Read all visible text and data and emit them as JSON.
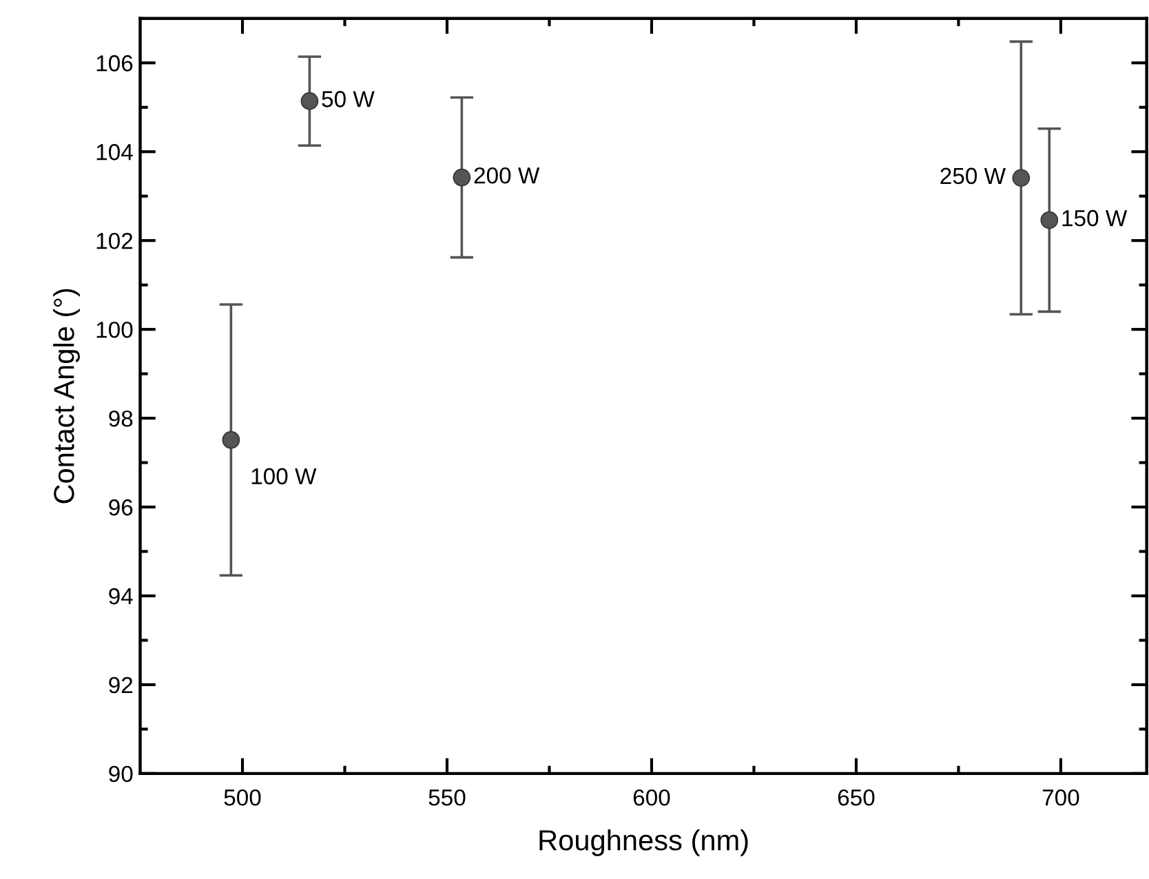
{
  "chart_data": {
    "type": "scatter",
    "xlabel": "Roughness (nm)",
    "ylabel": "Contact Angle (°)",
    "x": [
      516.4,
      497.2,
      697.2,
      553.6,
      690.3
    ],
    "series": [
      {
        "color": "#555555",
        "values": [
          105.14,
          97.51,
          102.46,
          103.42,
          103.41
        ],
        "errors": [
          1.0,
          3.05,
          2.06,
          1.8,
          3.07
        ]
      }
    ],
    "marker": "circle",
    "annotations": [
      {
        "text": "50 W",
        "x": 516.4,
        "y": 105.14
      },
      {
        "text": "100 W",
        "x": 497.2,
        "y": 97.51
      },
      {
        "text": "150 W",
        "x": 697.2,
        "y": 102.46
      },
      {
        "text": "200 W",
        "x": 553.6,
        "y": 103.42
      },
      {
        "text": "250 W",
        "x": 690.3,
        "y": 103.41
      }
    ],
    "xlim": [
      475,
      721
    ],
    "ylim": [
      90,
      107
    ],
    "xticks": [
      500,
      {
        "value": 525,
        "label": null
      },
      550,
      {
        "value": 575,
        "label": null
      },
      600,
      {
        "value": 625,
        "label": null
      },
      650,
      {
        "value": 675,
        "label": null
      },
      700
    ],
    "yticks": [
      90,
      {
        "value": 91,
        "label": null
      },
      92,
      {
        "value": 93,
        "label": null
      },
      94,
      {
        "value": 95,
        "label": null
      },
      96,
      {
        "value": 97,
        "label": null
      },
      98,
      {
        "value": 99,
        "label": null
      },
      100,
      {
        "value": 101,
        "label": null
      },
      102,
      {
        "value": 103,
        "label": null
      },
      104,
      {
        "value": 105,
        "label": null
      },
      106
    ],
    "grid": false,
    "legend": false
  }
}
